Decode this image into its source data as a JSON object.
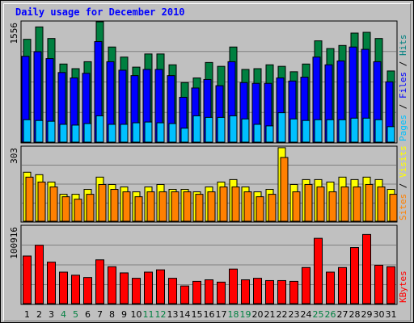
{
  "chart_data": [
    {
      "type": "bar",
      "title": "Daily usage for December 2010",
      "panel": "hits-files-pages",
      "ymax_label": "1556",
      "ylim": [
        0,
        1556
      ],
      "grid": true,
      "legend_placement": "right",
      "legend": [
        {
          "label": "Pages",
          "color": "#00c0ff"
        },
        {
          "label": " / ",
          "color": "#000000"
        },
        {
          "label": "Files",
          "color": "#0000ff"
        },
        {
          "label": " / ",
          "color": "#000000"
        },
        {
          "label": "Hits",
          "color": "#008080"
        }
      ],
      "categories": [
        "1",
        "2",
        "3",
        "4",
        "5",
        "6",
        "7",
        "8",
        "9",
        "10",
        "11",
        "12",
        "13",
        "14",
        "15",
        "16",
        "17",
        "18",
        "19",
        "20",
        "21",
        "22",
        "23",
        "24",
        "25",
        "26",
        "27",
        "28",
        "29",
        "30",
        "31"
      ],
      "series": [
        {
          "name": "Hits",
          "color": "#008040",
          "values": [
            1330,
            1490,
            1340,
            1010,
            950,
            1040,
            1560,
            1230,
            1100,
            970,
            1140,
            1140,
            1000,
            770,
            830,
            1030,
            980,
            1230,
            940,
            950,
            1000,
            980,
            910,
            1010,
            1310,
            1210,
            1250,
            1410,
            1420,
            1340,
            920
          ]
        },
        {
          "name": "Files",
          "color": "#0000ff",
          "values": [
            1110,
            1170,
            1080,
            900,
            830,
            890,
            1300,
            1040,
            930,
            860,
            940,
            940,
            860,
            580,
            700,
            810,
            730,
            1040,
            770,
            760,
            760,
            830,
            790,
            840,
            1100,
            1000,
            1050,
            1230,
            1200,
            1040,
            780
          ]
        },
        {
          "name": "Pages",
          "color": "#00c0ff",
          "values": [
            290,
            280,
            270,
            230,
            220,
            240,
            340,
            230,
            230,
            250,
            260,
            250,
            240,
            180,
            340,
            320,
            320,
            340,
            300,
            230,
            210,
            380,
            300,
            280,
            290,
            290,
            290,
            310,
            310,
            290,
            200
          ]
        }
      ]
    },
    {
      "type": "bar",
      "panel": "sites-visits",
      "ymax_label": "303",
      "ylim": [
        0,
        303
      ],
      "grid": true,
      "legend_placement": "right",
      "legend": [
        {
          "label": "Sites",
          "color": "#ff8000"
        },
        {
          "label": " / ",
          "color": "#000000"
        },
        {
          "label": "Visits",
          "color": "#ffff00"
        }
      ],
      "categories": [
        "1",
        "2",
        "3",
        "4",
        "5",
        "6",
        "7",
        "8",
        "9",
        "10",
        "11",
        "12",
        "13",
        "14",
        "15",
        "16",
        "17",
        "18",
        "19",
        "20",
        "21",
        "22",
        "23",
        "24",
        "25",
        "26",
        "27",
        "28",
        "29",
        "30",
        "31"
      ],
      "series": [
        {
          "name": "Visits",
          "color": "#ffff00",
          "values": [
            200,
            190,
            160,
            110,
            110,
            130,
            180,
            150,
            140,
            120,
            140,
            150,
            130,
            130,
            120,
            140,
            160,
            170,
            140,
            120,
            130,
            300,
            150,
            170,
            170,
            160,
            180,
            170,
            180,
            170,
            130
          ]
        },
        {
          "name": "Sites",
          "color": "#ff8000",
          "values": [
            180,
            160,
            140,
            100,
            90,
            110,
            150,
            130,
            120,
            100,
            120,
            120,
            120,
            120,
            110,
            120,
            140,
            140,
            120,
            100,
            110,
            260,
            120,
            150,
            140,
            120,
            140,
            140,
            150,
            140,
            110
          ]
        }
      ]
    },
    {
      "type": "bar",
      "panel": "kbytes",
      "ymax_label": "100916",
      "ylim": [
        0,
        100916
      ],
      "grid": true,
      "legend_placement": "right",
      "legend": [
        {
          "label": "KBytes",
          "color": "#ff0000"
        }
      ],
      "categories": [
        "1",
        "2",
        "3",
        "4",
        "5",
        "6",
        "7",
        "8",
        "9",
        "10",
        "11",
        "12",
        "13",
        "14",
        "15",
        "16",
        "17",
        "18",
        "19",
        "20",
        "21",
        "22",
        "23",
        "24",
        "25",
        "26",
        "27",
        "28",
        "29",
        "30",
        "31"
      ],
      "series": [
        {
          "name": "KBytes",
          "color": "#ff0000",
          "values": [
            62000,
            76000,
            54000,
            41000,
            37000,
            34000,
            57000,
            48000,
            40000,
            33000,
            41000,
            44000,
            33000,
            23000,
            29000,
            31000,
            28000,
            45000,
            31000,
            33000,
            30000,
            30000,
            29000,
            47000,
            85000,
            41000,
            47000,
            73000,
            90000,
            50000,
            48000
          ]
        }
      ]
    }
  ],
  "x_axis": {
    "labels": [
      "1",
      "2",
      "3",
      "4",
      "5",
      "6",
      "7",
      "8",
      "9",
      "10",
      "11",
      "12",
      "13",
      "14",
      "15",
      "16",
      "17",
      "18",
      "19",
      "20",
      "21",
      "22",
      "23",
      "24",
      "25",
      "26",
      "27",
      "28",
      "29",
      "30",
      "31"
    ],
    "label_color": "#000000",
    "weekend_color": "#008040",
    "weekend_days": [
      "4",
      "5",
      "11",
      "12",
      "18",
      "19",
      "25",
      "26"
    ]
  }
}
